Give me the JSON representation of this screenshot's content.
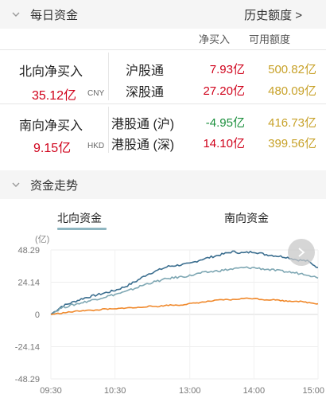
{
  "daily_funds": {
    "title": "每日资金",
    "history_link": "历史额度 >",
    "col_net": "净买入",
    "col_quota": "可用额度",
    "northbound": {
      "label": "北向净买入",
      "value": "35.12亿",
      "unit": "CNY",
      "rows": [
        {
          "name": "沪股通",
          "net": "7.93亿",
          "quota": "500.82亿"
        },
        {
          "name": "深股通",
          "net": "27.20亿",
          "quota": "480.09亿"
        }
      ]
    },
    "southbound": {
      "label": "南向净买入",
      "value": "9.15亿",
      "unit": "HKD",
      "rows": [
        {
          "name": "港股通 (沪)",
          "net": "-4.95亿",
          "quota": "416.73亿"
        },
        {
          "name": "港股通 (深)",
          "net": "14.10亿",
          "quota": "399.56亿"
        }
      ]
    }
  },
  "trend": {
    "title": "资金走势",
    "tabs": [
      "北向资金",
      "南向资金"
    ],
    "active_tab": "北向资金"
  },
  "colors": {
    "up": "#d0021b",
    "down": "#1a8f3c",
    "quota": "#c8a22a",
    "series_dark": "#3b6e8f",
    "series_light": "#7ea7b3",
    "series_orange": "#f0892c"
  },
  "chart_data": {
    "type": "line",
    "ylabel": "(亿)",
    "ylim": [
      -48.29,
      48.29
    ],
    "yticks": [
      "48.29",
      "24.14",
      "0",
      "-24.14",
      "-48.29"
    ],
    "xticks": [
      "09:30",
      "10:30",
      "13:00",
      "14:00",
      "15:00"
    ],
    "x": [
      "09:30",
      "09:40",
      "09:50",
      "10:00",
      "10:10",
      "10:20",
      "10:30",
      "10:40",
      "10:50",
      "11:00",
      "11:10",
      "11:20",
      "11:30",
      "13:00",
      "13:10",
      "13:20",
      "13:30",
      "13:40",
      "13:50",
      "14:00",
      "14:10",
      "14:20",
      "14:30",
      "14:40",
      "14:50",
      "15:00"
    ],
    "series": [
      {
        "values": [
          0,
          6,
          9,
          12,
          14,
          16,
          18,
          21,
          25,
          30,
          33,
          36,
          37,
          38,
          41,
          43,
          45,
          47,
          46,
          47,
          45,
          44,
          43,
          41,
          40,
          35.12
        ]
      },
      {
        "values": [
          0,
          5,
          7,
          9,
          11,
          13,
          15,
          17,
          20,
          23,
          25,
          27,
          28,
          29,
          31,
          32,
          33,
          34,
          35,
          35,
          34,
          33,
          32,
          31,
          30,
          27.2
        ]
      },
      {
        "values": [
          0,
          1,
          2,
          3,
          3,
          4,
          4,
          5,
          5,
          6,
          6,
          7,
          7,
          8,
          9,
          10,
          11,
          11,
          12,
          12,
          11,
          11,
          10,
          10,
          9,
          8
        ]
      }
    ]
  }
}
